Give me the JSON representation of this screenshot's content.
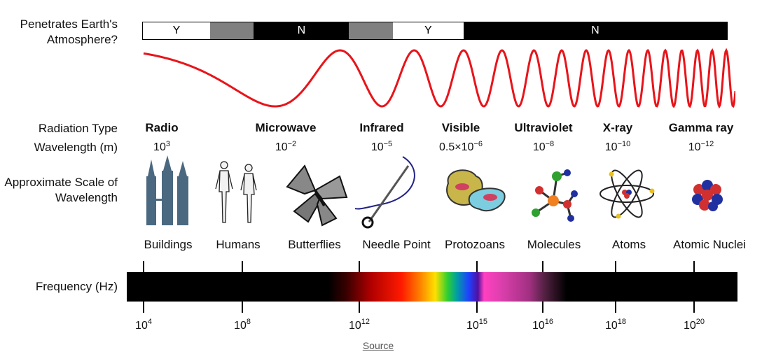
{
  "labels": {
    "atmosphere": "Penetrates Earth's Atmosphere?",
    "radiation_type": "Radiation Type",
    "wavelength": "Wavelength (m)",
    "scale": "Approximate Scale of Wavelength",
    "frequency": "Frequency (Hz)"
  },
  "atmosphere_segments": [
    {
      "value": "Y",
      "kind": "Y",
      "fraction": 0.115
    },
    {
      "value": "",
      "kind": "G",
      "fraction": 0.075
    },
    {
      "value": "N",
      "kind": "N",
      "fraction": 0.163
    },
    {
      "value": "",
      "kind": "G",
      "fraction": 0.075
    },
    {
      "value": "Y",
      "kind": "Y",
      "fraction": 0.121
    },
    {
      "value": "N",
      "kind": "N",
      "fraction": 0.451
    }
  ],
  "radiation": [
    {
      "name": "Radio",
      "base": "10",
      "exp": "3"
    },
    {
      "name": "Microwave",
      "base": "10",
      "exp": "−2"
    },
    {
      "name": "Infrared",
      "base": "10",
      "exp": "−5"
    },
    {
      "name": "Visible",
      "base": "0.5×10",
      "exp": "−6"
    },
    {
      "name": "Ultraviolet",
      "base": "10",
      "exp": "−8"
    },
    {
      "name": "X-ray",
      "base": "10",
      "exp": "−10"
    },
    {
      "name": "Gamma ray",
      "base": "10",
      "exp": "−12"
    }
  ],
  "scale_objects": [
    "Buildings",
    "Humans",
    "Butterflies",
    "Needle Point",
    "Protozoans",
    "Molecules",
    "Atoms",
    "Atomic Nuclei"
  ],
  "frequency_ticks": [
    {
      "base": "10",
      "exp": "4"
    },
    {
      "base": "10",
      "exp": "8"
    },
    {
      "base": "10",
      "exp": "12"
    },
    {
      "base": "10",
      "exp": "15"
    },
    {
      "base": "10",
      "exp": "16"
    },
    {
      "base": "10",
      "exp": "18"
    },
    {
      "base": "10",
      "exp": "20"
    }
  ],
  "source_link": "Source",
  "colors": {
    "wave": "#e8141a",
    "building": "#4a6880",
    "butterfly": "#888888"
  }
}
